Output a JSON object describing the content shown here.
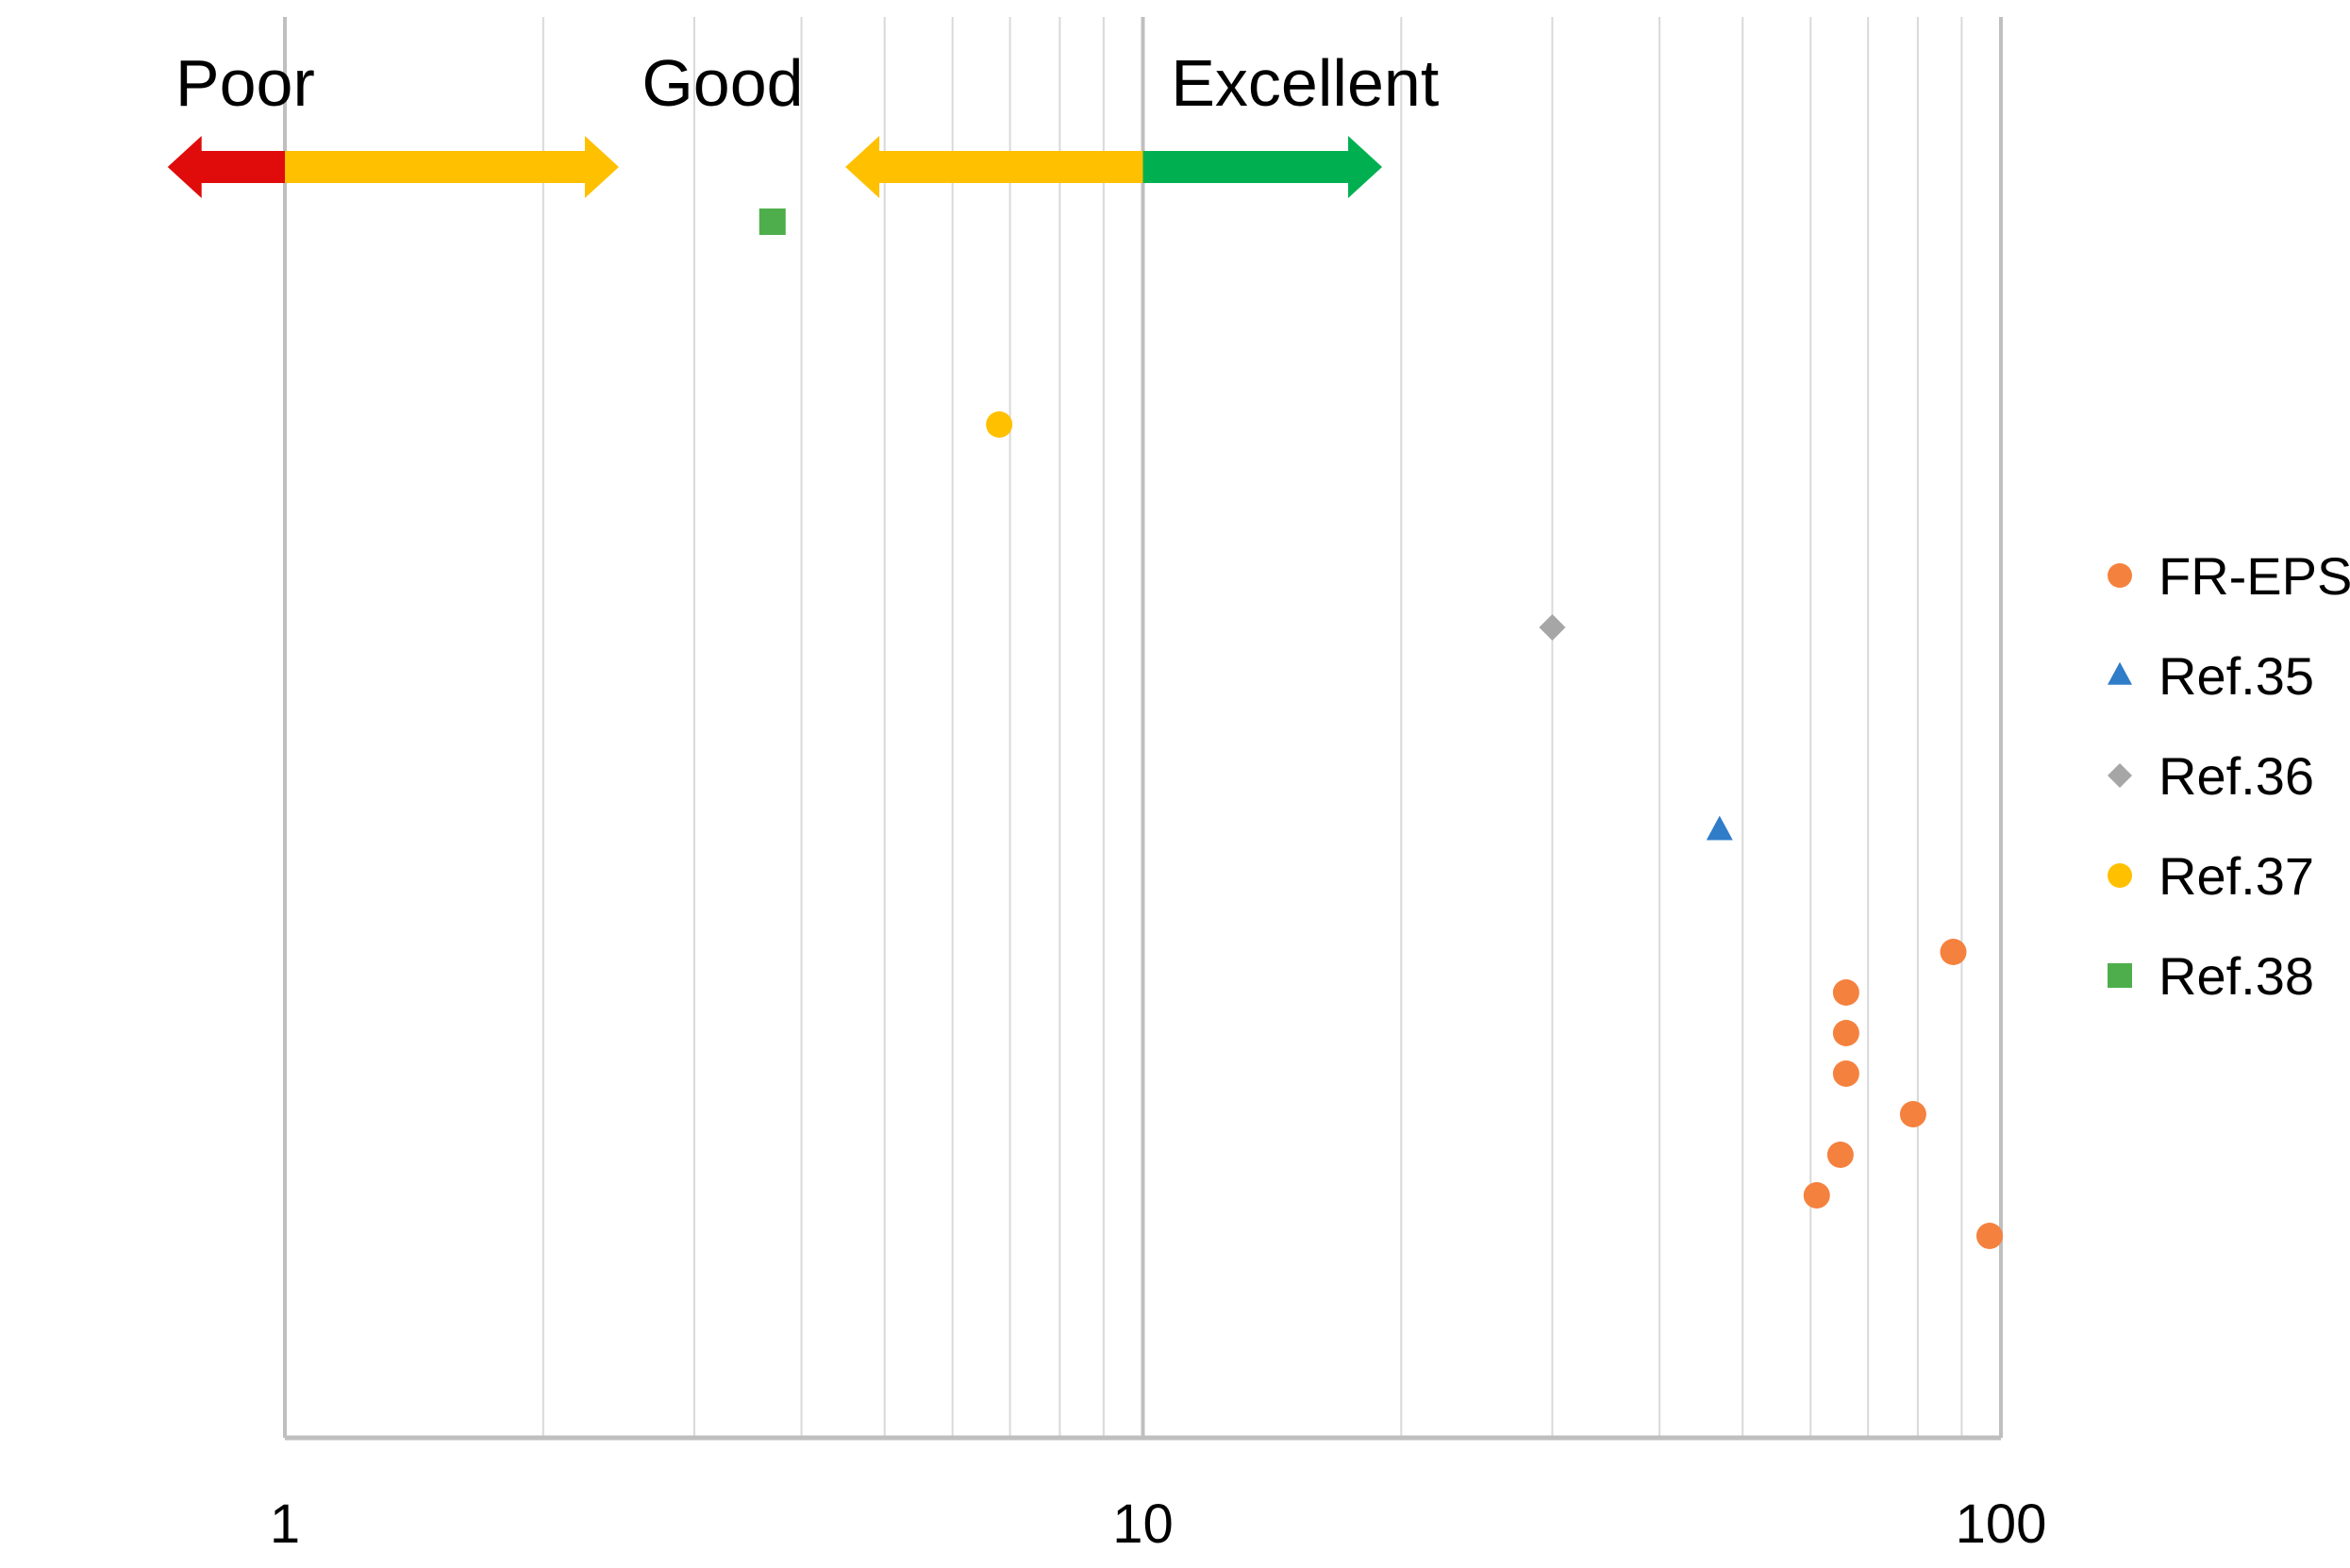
{
  "chart_data": {
    "type": "scatter",
    "title": "",
    "xlabel": "",
    "ylabel": "",
    "x_scale": "log",
    "xlim": [
      1,
      100
    ],
    "x_ticks": [
      {
        "value": 1,
        "label": "1"
      },
      {
        "value": 10,
        "label": "10"
      },
      {
        "value": 100,
        "label": "100"
      }
    ],
    "grid": true,
    "legend_position": "right",
    "rating_bands": [
      {
        "label": "Poor",
        "from": 0.73,
        "to": 1,
        "color": "#E00B0B",
        "direction": "left"
      },
      {
        "label": "Good",
        "from": 1,
        "to": 2.45,
        "color": "#FFC000",
        "direction": "right"
      },
      {
        "label": "Good",
        "from": 4.5,
        "to": 10,
        "color": "#FFC000",
        "direction": "left",
        "show_label": false
      },
      {
        "label": "Excellent",
        "from": 10,
        "to": 19,
        "color": "#00B050",
        "direction": "right"
      }
    ],
    "series": [
      {
        "name": "FR-EPS",
        "marker": "circle",
        "color": "#F5813E",
        "points": [
          {
            "x": 88,
            "rank": 19
          },
          {
            "x": 66,
            "rank": 20
          },
          {
            "x": 66,
            "rank": 21
          },
          {
            "x": 66,
            "rank": 22
          },
          {
            "x": 79,
            "rank": 23
          },
          {
            "x": 65,
            "rank": 24
          },
          {
            "x": 61,
            "rank": 25
          },
          {
            "x": 97,
            "rank": 26
          }
        ]
      },
      {
        "name": "Ref.35",
        "marker": "triangle",
        "color": "#2F7CC9",
        "points": [
          {
            "x": 47,
            "rank": 16
          }
        ]
      },
      {
        "name": "Ref.36",
        "marker": "diamond",
        "color": "#A6A6A6",
        "points": [
          {
            "x": 30,
            "rank": 11
          }
        ]
      },
      {
        "name": "Ref.37",
        "marker": "circle",
        "color": "#FFC000",
        "points": [
          {
            "x": 6.8,
            "rank": 6
          }
        ]
      },
      {
        "name": "Ref.38",
        "marker": "square",
        "color": "#4EAE4B",
        "points": [
          {
            "x": 3.7,
            "rank": 1
          }
        ]
      }
    ]
  }
}
